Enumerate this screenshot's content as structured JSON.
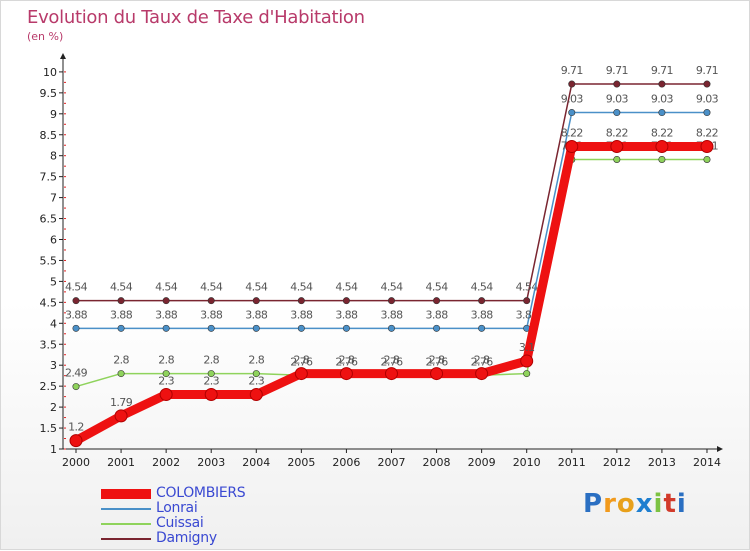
{
  "chart_data": {
    "type": "line",
    "title": "Evolution du Taux de Taxe d'Habitation",
    "ylabel": "(en %)",
    "xlabel": "",
    "x": [
      "2000",
      "2001",
      "2002",
      "2003",
      "2004",
      "2005",
      "2006",
      "2007",
      "2008",
      "2009",
      "2010",
      "2011",
      "2012",
      "2013",
      "2014"
    ],
    "ylim": [
      1,
      10
    ],
    "yticks": [
      "1",
      "1.5",
      "2",
      "2.5",
      "3",
      "3.5",
      "4",
      "4.5",
      "5",
      "5.5",
      "6",
      "6.5",
      "7",
      "7.5",
      "8",
      "8.5",
      "9",
      "9.5",
      "10"
    ],
    "grid": false,
    "legend_position": "bottom-left",
    "series": [
      {
        "name": "Damigny",
        "color": "#7a2530",
        "values": [
          4.54,
          4.54,
          4.54,
          4.54,
          4.54,
          4.54,
          4.54,
          4.54,
          4.54,
          4.54,
          4.54,
          9.71,
          9.71,
          9.71,
          9.71
        ],
        "labels": [
          "4.54",
          "4.54",
          "4.54",
          "4.54",
          "4.54",
          "4.54",
          "4.54",
          "4.54",
          "4.54",
          "4.54",
          "4.54",
          "9.71",
          "9.71",
          "9.71",
          "9.71"
        ]
      },
      {
        "name": "Lonrai",
        "color": "#4a90c8",
        "values": [
          3.88,
          3.88,
          3.88,
          3.88,
          3.88,
          3.88,
          3.88,
          3.88,
          3.88,
          3.88,
          3.88,
          9.03,
          9.03,
          9.03,
          9.03
        ],
        "labels": [
          "3.88",
          "3.88",
          "3.88",
          "3.88",
          "3.88",
          "3.88",
          "3.88",
          "3.88",
          "3.88",
          "3.88",
          "3.88",
          "9.03",
          "9.03",
          "9.03",
          "9.03"
        ]
      },
      {
        "name": "Cuissai",
        "color": "#8fd35c",
        "values": [
          2.49,
          2.8,
          2.8,
          2.8,
          2.8,
          2.76,
          2.76,
          2.76,
          2.76,
          2.76,
          2.8,
          7.91,
          7.91,
          7.91,
          7.91
        ],
        "labels": [
          "2.49",
          "2.8",
          "2.8",
          "2.8",
          "2.8",
          "2.76",
          "2.76",
          "2.76",
          "2.76",
          "2.76",
          "",
          "7.91",
          "7.91",
          "7.91",
          "7.91"
        ]
      },
      {
        "name": "COLOMBIERS",
        "color": "#ee1111",
        "values": [
          1.2,
          1.79,
          2.3,
          2.3,
          2.3,
          2.8,
          2.8,
          2.8,
          2.8,
          2.8,
          3.1,
          8.22,
          8.22,
          8.22,
          8.22
        ],
        "labels": [
          "1.2",
          "1.79",
          "2.3",
          "2.3",
          "2.3",
          "2.8",
          "2.8",
          "2.8",
          "2.8",
          "2.8",
          "3.1",
          "8.22",
          "8.22",
          "8.22",
          "8.22"
        ]
      }
    ]
  },
  "legend": {
    "items": [
      {
        "name": "COLOMBIERS",
        "color": "#ee1111"
      },
      {
        "name": "Lonrai",
        "color": "#4a90c8"
      },
      {
        "name": "Cuissai",
        "color": "#8fd35c"
      },
      {
        "name": "Damigny",
        "color": "#7a2530"
      }
    ]
  },
  "logo": {
    "text": "Proxiti",
    "letter_colors": [
      "#2a6fc2",
      "#f29a1c",
      "#e8a01a",
      "#1e7fd0",
      "#7cc242",
      "#d23a2a",
      "#2a6fc2"
    ]
  }
}
